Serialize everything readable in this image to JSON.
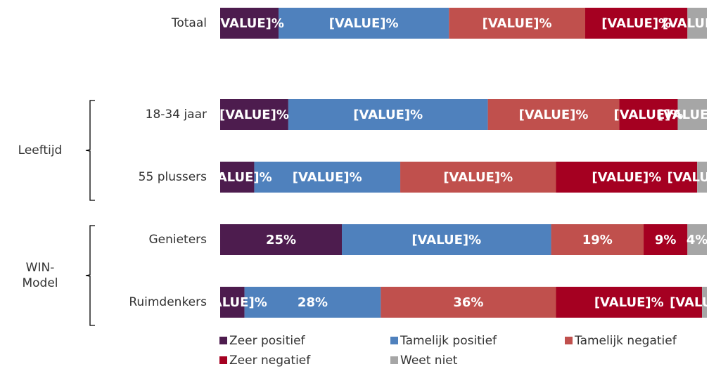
{
  "chart_data": {
    "type": "stacked-bar-horizontal",
    "categories": [
      "Totaal",
      "18-34 jaar",
      "55 plussers",
      "Genieters",
      "Ruimdenkers"
    ],
    "groups": [
      {
        "lines": [
          "Leeftijd"
        ],
        "members": [
          1,
          2
        ]
      },
      {
        "lines": [
          "WIN-",
          "Model"
        ],
        "members": [
          3,
          4
        ]
      }
    ],
    "xlim": [
      0,
      100
    ],
    "series": [
      {
        "name": "Zeer positief",
        "color": "#4d1c4e",
        "values": [
          12,
          14,
          7,
          25,
          5
        ],
        "value_labels": [
          "[VALUE]%",
          "[VALUE]%",
          "[VALUE]%",
          "25%",
          "[VALUE]%"
        ]
      },
      {
        "name": "Tamelijk positief",
        "color": "#4f81bd",
        "values": [
          35,
          41,
          30,
          43,
          28
        ],
        "value_labels": [
          "[VALUE]%",
          "[VALUE]%",
          "[VALUE]%",
          "[VALUE]%",
          "28%"
        ]
      },
      {
        "name": "Tamelijk negatief",
        "color": "#c0504d",
        "values": [
          28,
          27,
          32,
          19,
          36
        ],
        "value_labels": [
          "[VALUE]%",
          "[VALUE]%",
          "[VALUE]%",
          "19%",
          "36%"
        ]
      },
      {
        "name": "Zeer negatief",
        "color": "#a50021",
        "values": [
          21,
          12,
          29,
          9,
          30
        ],
        "value_labels": [
          "[VALUE]%",
          "[VALUE]%",
          "[VALUE]%",
          "9%",
          "[VALUE]%"
        ]
      },
      {
        "name": "Weet niet",
        "color": "#a6a6a6",
        "values": [
          4,
          6,
          2,
          4,
          1
        ],
        "value_labels": [
          "[VALUE]%",
          "[VALUE]%",
          "[VALUE]%",
          "4%",
          "[VALUE]%"
        ]
      }
    ]
  }
}
